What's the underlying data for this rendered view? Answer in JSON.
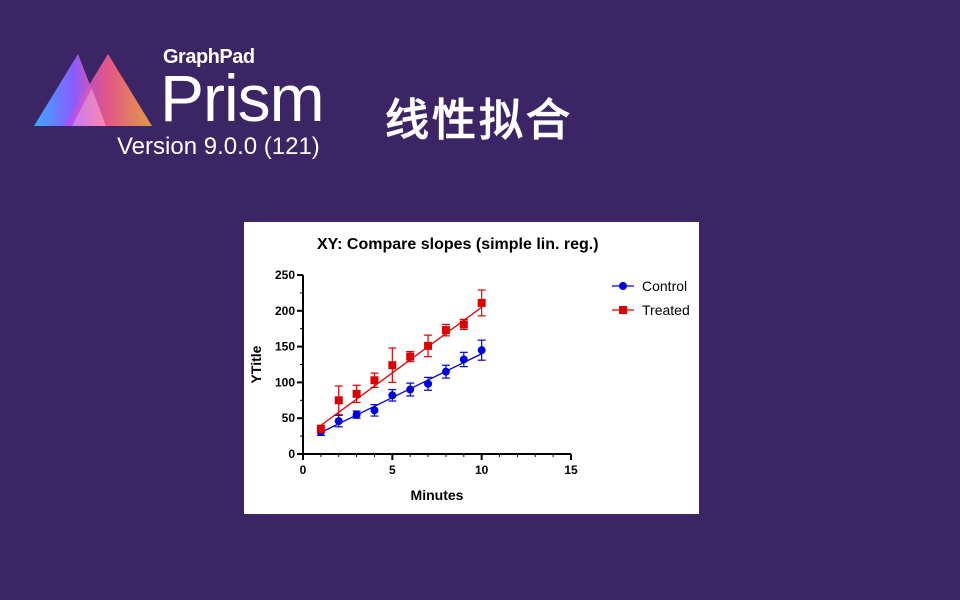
{
  "header": {
    "brand_small": "GraphPad",
    "brand_big": "Prism",
    "version": "Version 9.0.0 (121)",
    "headline": "线性拟合"
  },
  "colors": {
    "background": "#3c2564",
    "control": "#0000dd",
    "treated": "#dd0000"
  },
  "chart_data": {
    "type": "scatter",
    "title": "XY: Compare slopes (simple lin. reg.)",
    "xlabel": "Minutes",
    "ylabel": "YTitle",
    "xlim": [
      0,
      15
    ],
    "ylim": [
      0,
      250
    ],
    "xticks": [
      "0",
      "5",
      "10",
      "15"
    ],
    "yticks": [
      "0",
      "50",
      "100",
      "150",
      "200",
      "250"
    ],
    "grid": false,
    "legend_position": "top-right",
    "series": [
      {
        "name": "Control",
        "marker": "circle",
        "x": [
          1,
          2,
          3,
          4,
          5,
          6,
          7,
          8,
          9,
          10
        ],
        "y": [
          31,
          46,
          55,
          61,
          82,
          90,
          98,
          115,
          132,
          145
        ],
        "err": [
          5,
          8,
          5,
          8,
          8,
          9,
          9,
          9,
          10,
          14
        ],
        "fit": [
          [
            1,
            30
          ],
          [
            10,
            140
          ]
        ]
      },
      {
        "name": "Treated",
        "marker": "square",
        "x": [
          1,
          2,
          3,
          4,
          5,
          6,
          7,
          8,
          9,
          10
        ],
        "y": [
          35,
          75,
          84,
          103,
          124,
          136,
          151,
          173,
          181,
          211
        ],
        "err": [
          5,
          20,
          12,
          10,
          24,
          7,
          15,
          8,
          7,
          18
        ],
        "fit": [
          [
            1,
            40
          ],
          [
            10,
            205
          ]
        ]
      }
    ]
  }
}
